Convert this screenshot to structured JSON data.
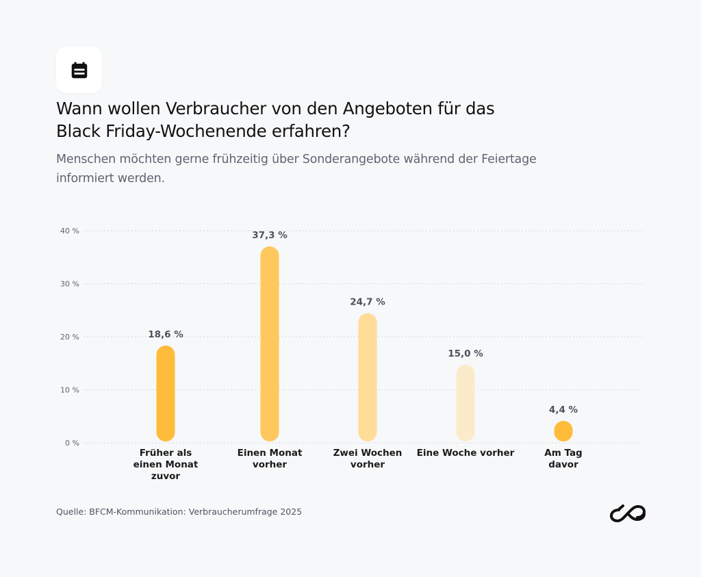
{
  "header": {
    "icon": "calendar-icon",
    "title": "Wann wollen Verbraucher von den Angeboten für das Black Friday-Wochenende erfahren?",
    "title_line1": "Wann wollen Verbraucher von den Angeboten für das",
    "title_line2": "Black Friday-Wochenende erfahren?",
    "subtitle_line1": "Menschen möchten gerne frühzeitig über Sonderangebote während der Feiertage",
    "subtitle_line2": "informiert werden."
  },
  "colors": {
    "background": "#f7f8fa",
    "bars": [
      "#ffbc3a",
      "#ffc85e",
      "#ffdc98",
      "#fcebcb",
      "#ffbc3a"
    ],
    "gridline": "#c9ccd1",
    "tick_text": "#5d6570",
    "value_text": "#4a525c",
    "category_text": "#1a1a1a"
  },
  "chart_data": {
    "type": "bar",
    "title": "Wann wollen Verbraucher von den Angeboten für das Black Friday-Wochenende erfahren?",
    "xlabel": "",
    "ylabel": "",
    "categories": [
      [
        "Früher als",
        "einen Monat",
        "zuvor"
      ],
      [
        "Einen Monat",
        "vorher"
      ],
      [
        "Zwei Wochen",
        "vorher"
      ],
      [
        "Eine Woche vorher"
      ],
      [
        "Am Tag",
        "davor"
      ]
    ],
    "values": [
      18.6,
      37.3,
      24.7,
      15.0,
      4.4
    ],
    "value_labels": [
      "18,6 %",
      "37,3 %",
      "24,7 %",
      "15,0 %",
      "4,4 %"
    ],
    "ylim": [
      0,
      40
    ],
    "yticks": [
      0,
      10,
      20,
      30,
      40
    ],
    "ytick_labels": [
      "0 %",
      "10 %",
      "20 %",
      "30 %",
      "40 %"
    ],
    "grid": true,
    "legend": "none"
  },
  "footer": {
    "source": "Quelle: BFCM-Kommunikation: Verbraucherumfrage 2025",
    "logo": "brand-logo-icon"
  }
}
